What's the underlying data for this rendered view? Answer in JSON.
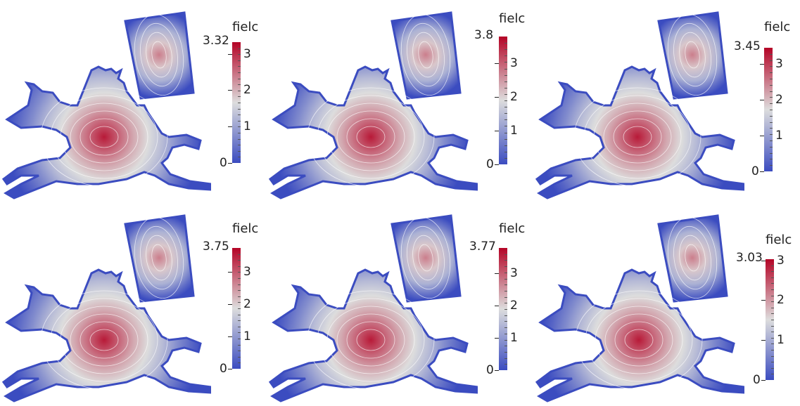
{
  "panels": [
    {
      "id": "p1",
      "colorbar": {
        "title": "fielc",
        "max_label": "3.32",
        "min_label": "0",
        "max_value": 3.32,
        "tick_labels": [
          "3",
          "2",
          "1",
          "0"
        ],
        "ticks": [
          3,
          2,
          1,
          0
        ]
      }
    },
    {
      "id": "p2",
      "colorbar": {
        "title": "fielc",
        "max_label": "3.8",
        "min_label": "0",
        "max_value": 3.8,
        "tick_labels": [
          "3",
          "2",
          "1",
          "0"
        ],
        "ticks": [
          3,
          2,
          1,
          0
        ]
      }
    },
    {
      "id": "p3",
      "colorbar": {
        "title": "fielc",
        "max_label": "3.45",
        "min_label": "0",
        "max_value": 3.45,
        "tick_labels": [
          "3",
          "2",
          "1",
          "0"
        ],
        "ticks": [
          3,
          2,
          1,
          0
        ]
      }
    },
    {
      "id": "p4",
      "colorbar": {
        "title": "fielc",
        "max_label": "3.75",
        "min_label": "0",
        "max_value": 3.75,
        "tick_labels": [
          "3",
          "2",
          "1",
          "0"
        ],
        "ticks": [
          3,
          2,
          1,
          0
        ]
      }
    },
    {
      "id": "p5",
      "colorbar": {
        "title": "fielc",
        "max_label": "3.77",
        "min_label": "0",
        "max_value": 3.77,
        "tick_labels": [
          "3",
          "2",
          "1",
          "0"
        ],
        "ticks": [
          3,
          2,
          1,
          0
        ]
      }
    },
    {
      "id": "p6",
      "colorbar": {
        "title": "fielc",
        "max_label": "3.03",
        "min_label": "0",
        "max_value": 3.03,
        "tick_labels": [
          "3",
          "2",
          "1",
          "0"
        ],
        "ticks": [
          3,
          2,
          1,
          0
        ]
      }
    }
  ],
  "colors": {
    "low": "#3b4cc0",
    "mid": "#dddddd",
    "high": "#b40426",
    "contour": "#ffffff"
  }
}
